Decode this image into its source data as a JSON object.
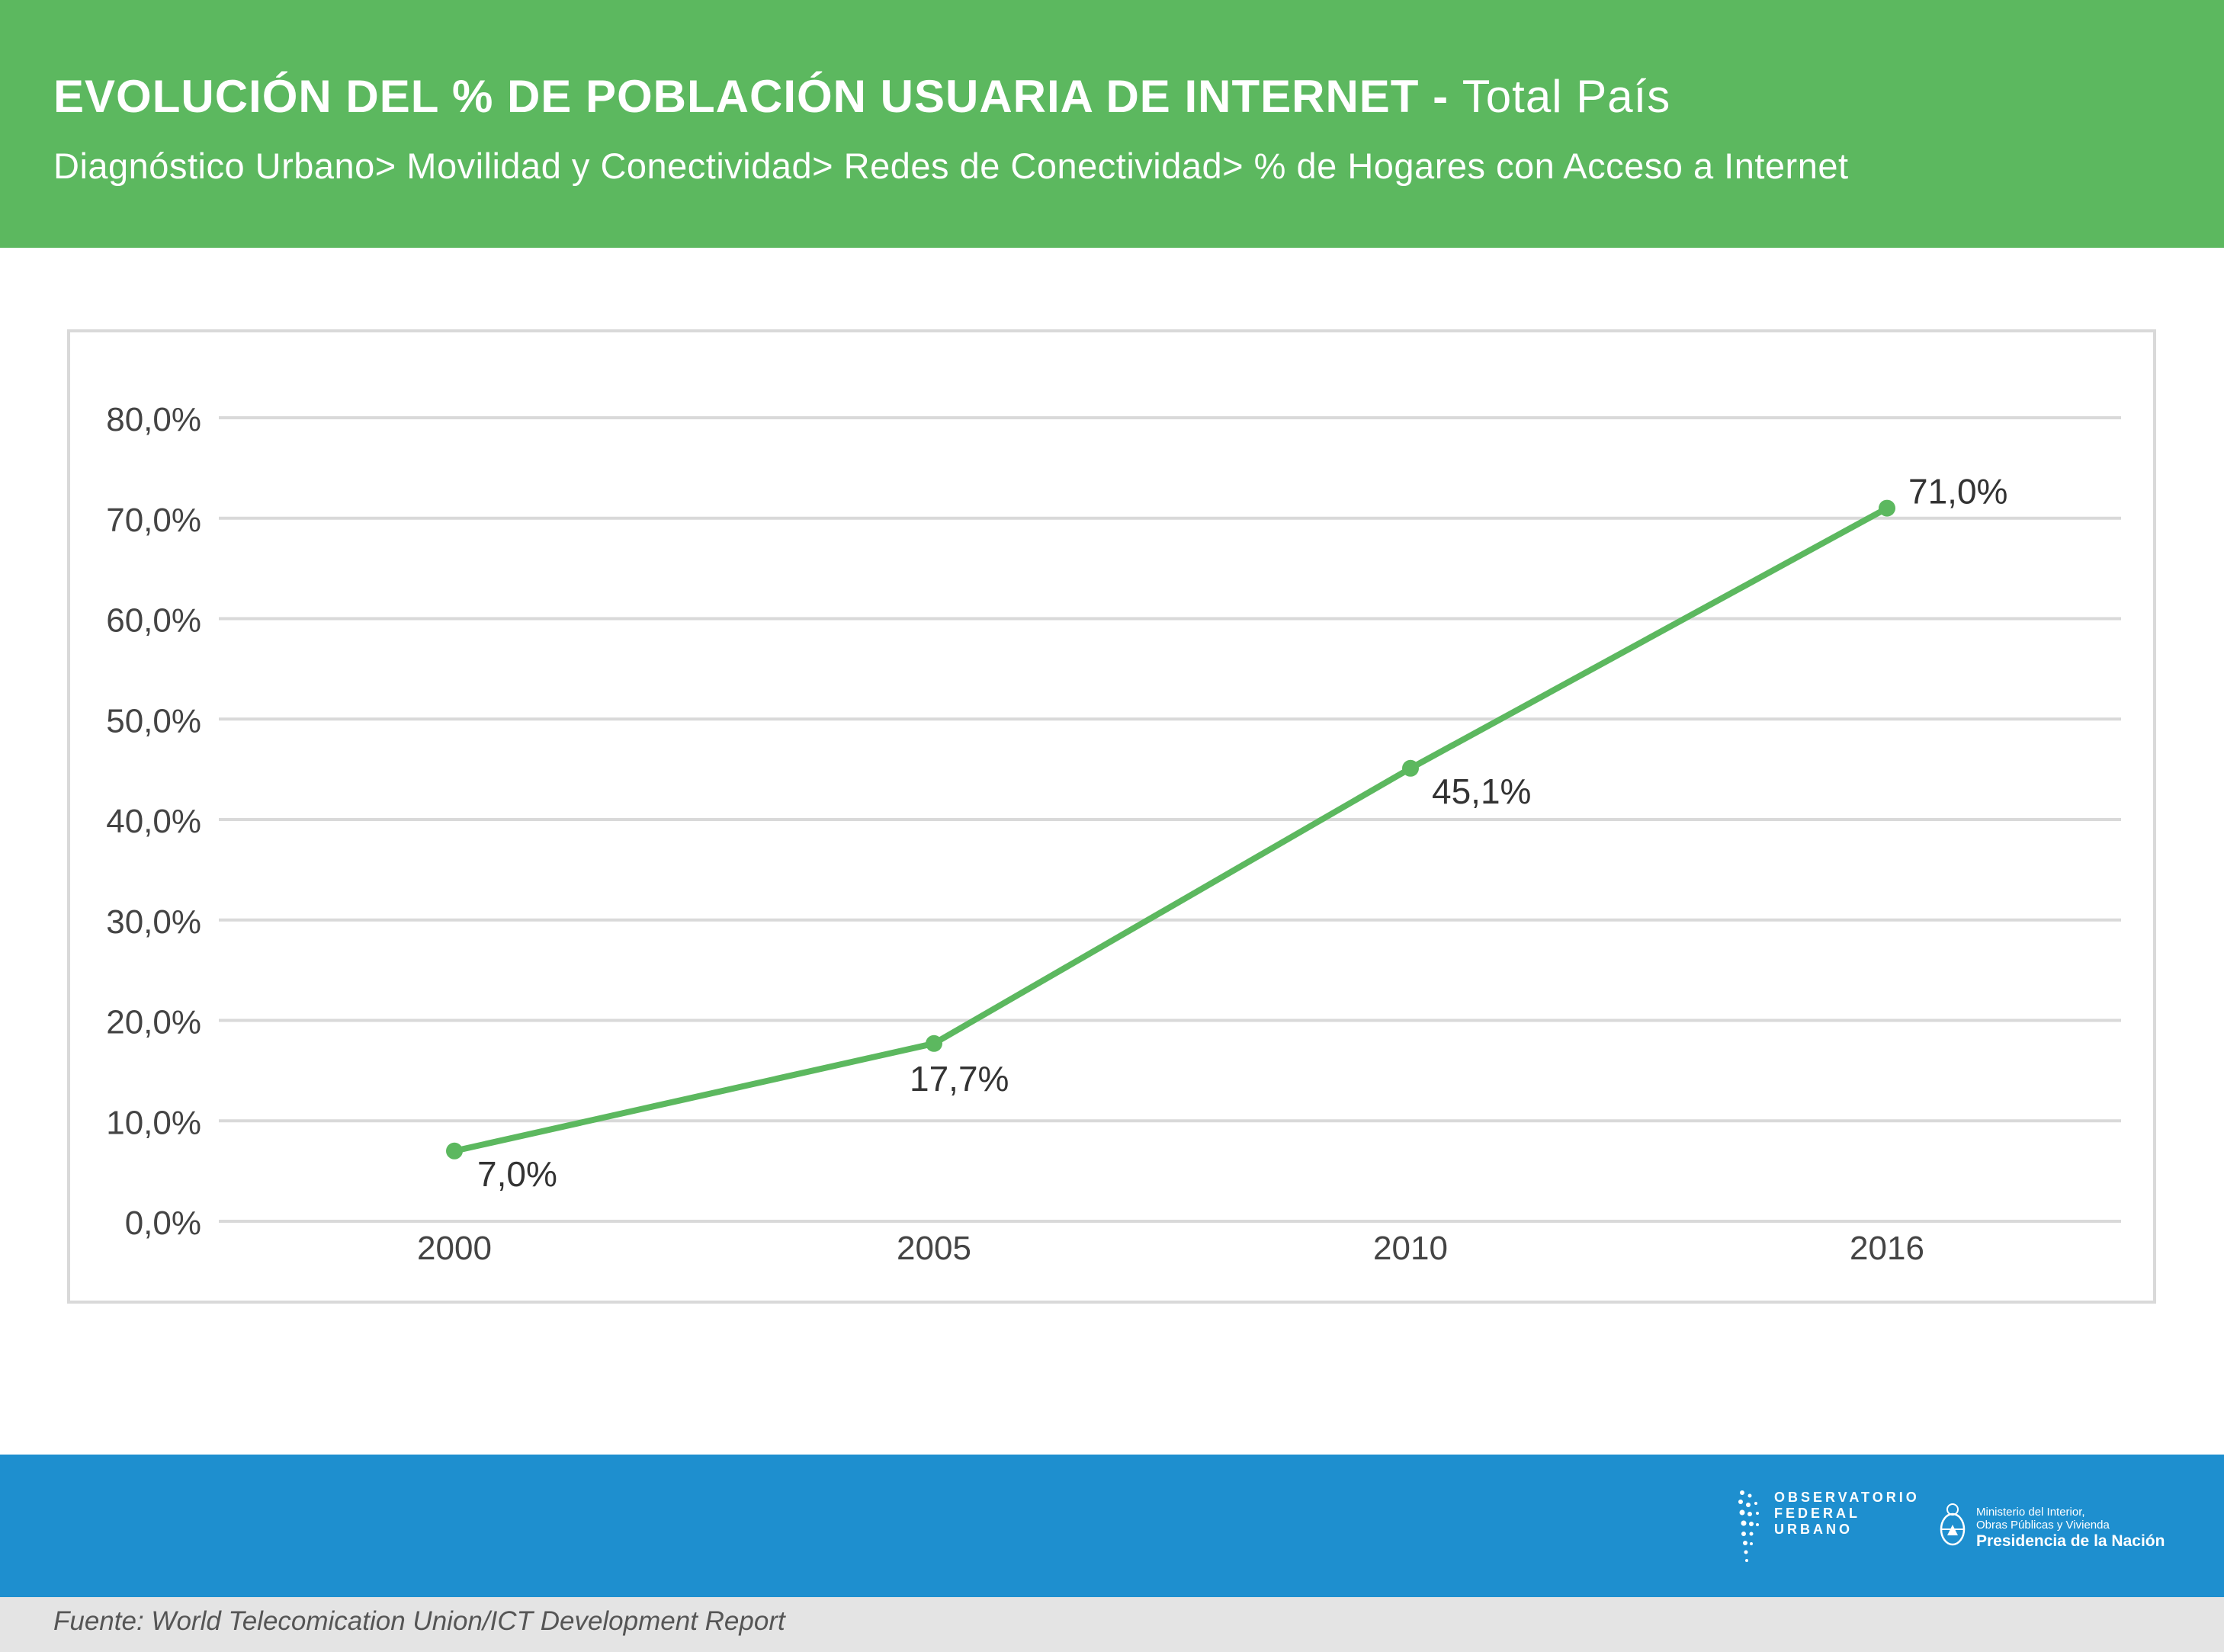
{
  "header": {
    "title_bold": "EVOLUCIÓN DEL % DE POBLACIÓN USUARIA DE INTERNET -",
    "title_normal": "Total País",
    "subtitle": "Diagnóstico Urbano> Movilidad y Conectividad> Redes de Conectividad> % de Hogares con Acceso a Internet"
  },
  "colors": {
    "header_bg": "#5cb85f",
    "line": "#5cb85f",
    "footer_bg": "#1e8fcf",
    "source_bg": "#e4e4e4",
    "grid": "#d9d9d9"
  },
  "chart_data": {
    "type": "line",
    "title": "",
    "xlabel": "",
    "ylabel": "",
    "categories": [
      "2000",
      "2005",
      "2010",
      "2016"
    ],
    "values": [
      7.0,
      17.7,
      45.1,
      71.0
    ],
    "data_labels": [
      "7,0%",
      "17,7%",
      "45,1%",
      "71,0%"
    ],
    "ylim": [
      0,
      80
    ],
    "yticks": [
      "0,0%",
      "10,0%",
      "20,0%",
      "30,0%",
      "40,0%",
      "50,0%",
      "60,0%",
      "70,0%",
      "80,0%"
    ],
    "grid": true,
    "legend": "none"
  },
  "logos": {
    "ofu_text": "OBSERVATORIO\nFEDERAL\nURBANO",
    "min_line1": "Ministerio del Interior,",
    "min_line2": "Obras Públicas y Vivienda",
    "min_line3": "Presidencia de la Nación"
  },
  "source": {
    "text": "Fuente: World Telecomication Union/ICT Development Report"
  }
}
